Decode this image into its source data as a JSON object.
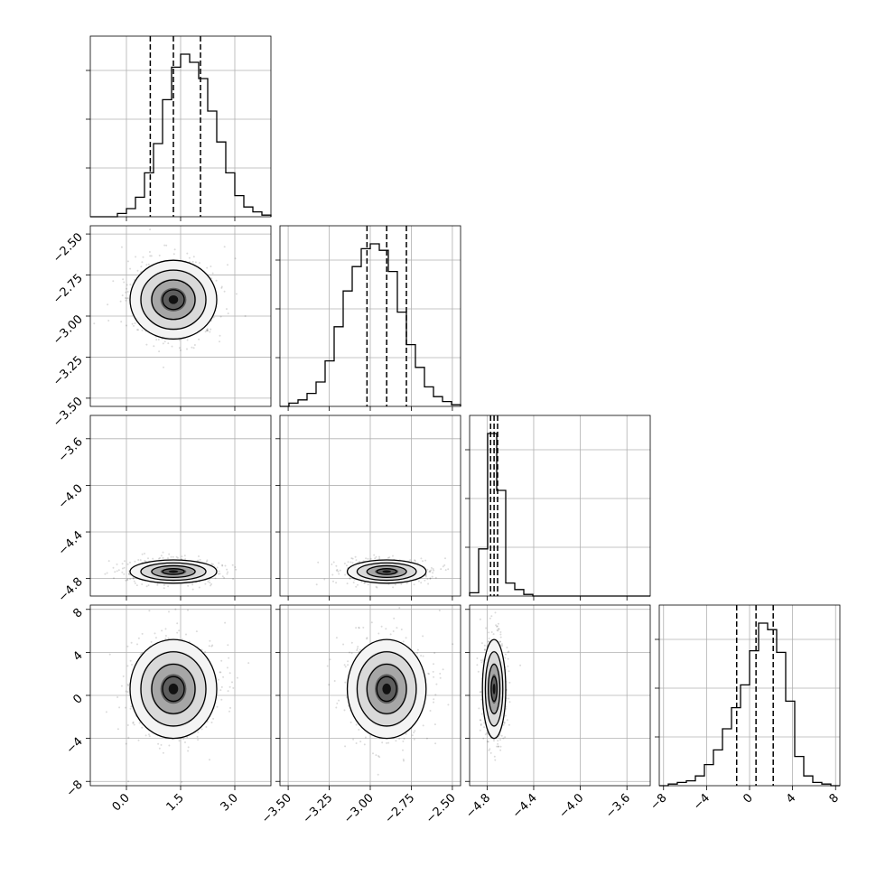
{
  "chart_data": {
    "type": "corner",
    "parameters": [
      {
        "range": [
          -1.0,
          4.0
        ],
        "ticks": [
          0.0,
          1.5,
          3.0
        ],
        "tick_labels": [
          "0.0",
          "1.5",
          "3.0"
        ],
        "mean": 1.3,
        "sd": 0.6,
        "quantiles": [
          0.66,
          1.3,
          2.05
        ],
        "hist_bins": [
          0.0,
          0.0,
          0.0,
          0.02,
          0.05,
          0.12,
          0.27,
          0.45,
          0.72,
          0.92,
          1.0,
          0.95,
          0.85,
          0.65,
          0.46,
          0.27,
          0.13,
          0.06,
          0.03,
          0.01
        ]
      },
      {
        "range": [
          -3.55,
          -2.45
        ],
        "ticks": [
          -3.5,
          -3.25,
          -3.0,
          -2.75,
          -2.5
        ],
        "tick_labels": [
          "−3.50",
          "−3.25",
          "−3.00",
          "−2.75",
          "−2.50"
        ],
        "mean": -2.9,
        "sd": 0.12,
        "quantiles": [
          -3.02,
          -2.9,
          -2.78
        ],
        "hist_bins": [
          0.0,
          0.02,
          0.04,
          0.08,
          0.15,
          0.28,
          0.49,
          0.71,
          0.86,
          0.97,
          1.0,
          0.96,
          0.83,
          0.58,
          0.38,
          0.24,
          0.12,
          0.06,
          0.03,
          0.01
        ]
      },
      {
        "range": [
          -4.95,
          -3.4
        ],
        "ticks": [
          -4.8,
          -4.4,
          -4.0,
          -3.6
        ],
        "tick_labels": [
          "−4.8",
          "−4.4",
          "−4.0",
          "−3.6"
        ],
        "mean": -4.74,
        "sd": 0.05,
        "quantiles": [
          -4.77,
          -4.74,
          -4.71
        ],
        "hist_bins": [
          0.02,
          0.29,
          1.0,
          0.65,
          0.08,
          0.04,
          0.01,
          0.0,
          0.0,
          0.0,
          0.0,
          0.0,
          0.0,
          0.0,
          0.0,
          0.0,
          0.0,
          0.0,
          0.0,
          0.0
        ]
      },
      {
        "range": [
          -8.4,
          8.4
        ],
        "ticks": [
          -8,
          -4,
          0,
          4,
          8
        ],
        "tick_labels": [
          "−8",
          "−4",
          "0",
          "4",
          "8"
        ],
        "mean": 0.6,
        "sd": 2.3,
        "quantiles": [
          -1.2,
          0.6,
          2.2
        ],
        "hist_bins": [
          0.0,
          0.01,
          0.02,
          0.03,
          0.06,
          0.13,
          0.22,
          0.35,
          0.48,
          0.62,
          0.83,
          1.0,
          0.96,
          0.82,
          0.52,
          0.18,
          0.06,
          0.02,
          0.01,
          0.0
        ]
      }
    ],
    "quantile_levels": [
      0.16,
      0.5,
      0.84
    ],
    "grid": true,
    "xlabel": "",
    "ylabel": "",
    "title": ""
  }
}
